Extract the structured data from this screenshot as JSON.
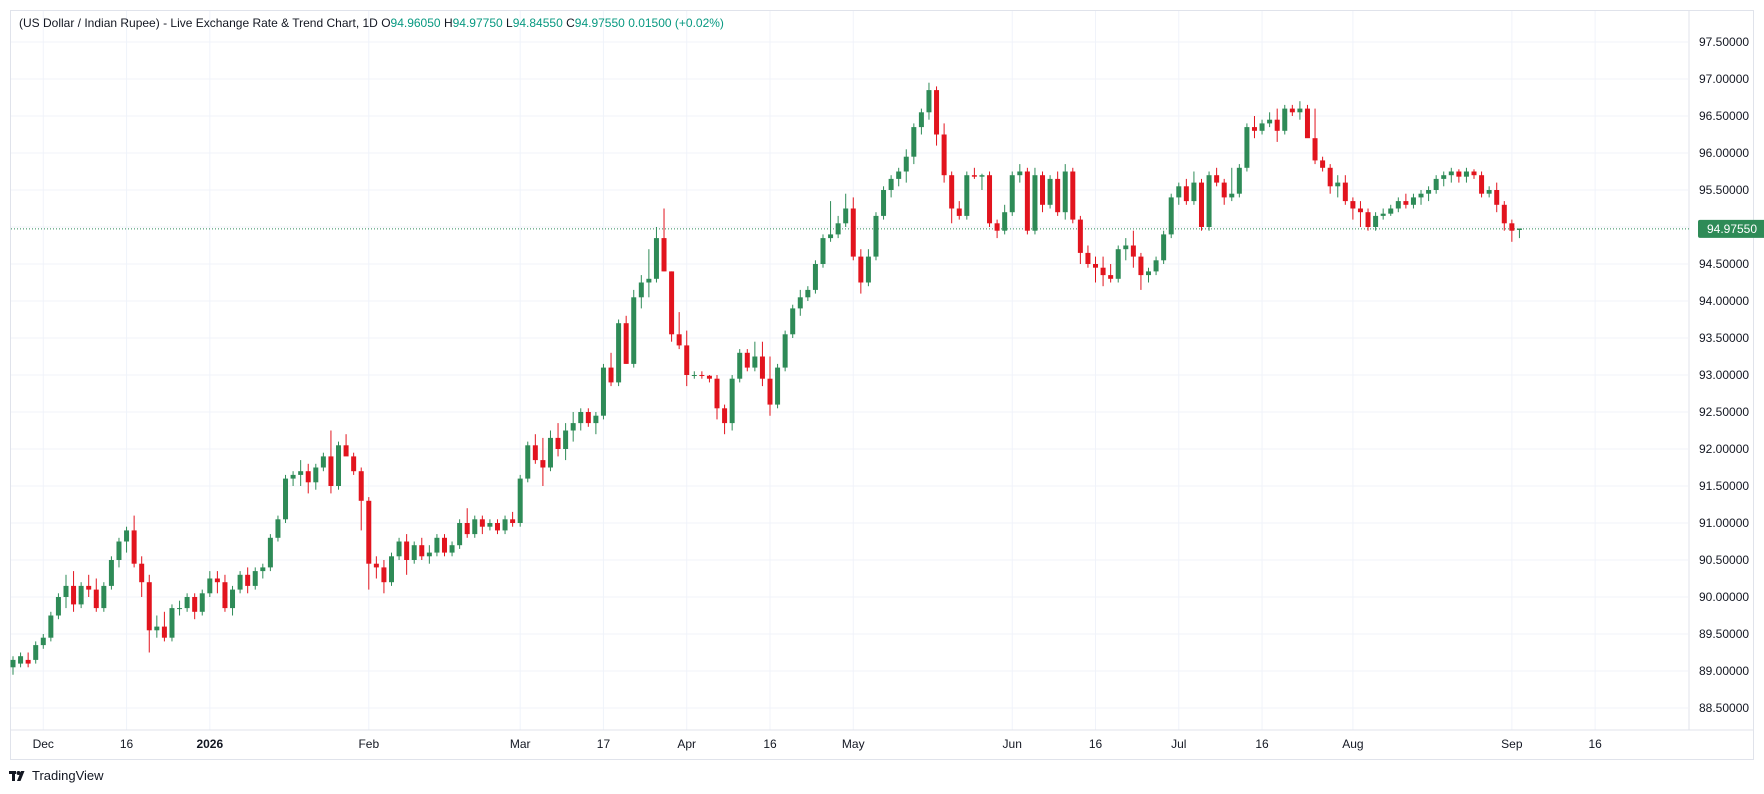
{
  "legend": {
    "symbol": "(US Dollar / Indian Rupee) - Live Exchange Rate & Trend Chart, 1D",
    "o_label": "O",
    "o_value": "94.96050",
    "h_label": "H",
    "h_value": "94.97750",
    "l_label": "L",
    "l_value": "94.84550",
    "c_label": "C",
    "c_value": "94.97550",
    "change": "0.01500 (+0.02%)"
  },
  "footer": {
    "brand": "TradingView"
  },
  "colors": {
    "up": "#2e8b57",
    "down": "#e2141e",
    "last_price_bg": "#2e8b57",
    "grid": "#f0f3fa"
  },
  "chart_data": {
    "type": "candlestick",
    "title": "(US Dollar / Indian Rupee) - Live Exchange Rate & Trend Chart, 1D",
    "xlabel": "",
    "ylabel": "",
    "ylim": [
      88.2,
      97.8
    ],
    "grid": true,
    "y_ticks": [
      "88.50000",
      "89.00000",
      "89.50000",
      "90.00000",
      "90.50000",
      "91.00000",
      "91.50000",
      "92.00000",
      "92.50000",
      "93.00000",
      "93.50000",
      "94.00000",
      "94.50000",
      "95.00000",
      "95.50000",
      "96.00000",
      "96.50000",
      "97.00000",
      "97.50000"
    ],
    "x_ticks": [
      {
        "label": "Dec",
        "index": 4
      },
      {
        "label": "16",
        "index": 15
      },
      {
        "label": "2026",
        "index": 26
      },
      {
        "label": "Feb",
        "index": 47
      },
      {
        "label": "Mar",
        "index": 67
      },
      {
        "label": "17",
        "index": 78
      },
      {
        "label": "Apr",
        "index": 89
      },
      {
        "label": "16",
        "index": 100
      },
      {
        "label": "May",
        "index": 111
      },
      {
        "label": "Jun",
        "index": 132
      },
      {
        "label": "16",
        "index": 143
      },
      {
        "label": "Jul",
        "index": 154
      },
      {
        "label": "16",
        "index": 165
      },
      {
        "label": "Aug",
        "index": 177
      },
      {
        "label": "Sep",
        "index": 198
      },
      {
        "label": "16",
        "index": 209
      }
    ],
    "last_price": "94.97550",
    "last_price_value": 94.9755,
    "candles": [
      [
        89.05,
        89.2,
        88.95,
        89.15
      ],
      [
        89.1,
        89.25,
        89.05,
        89.2
      ],
      [
        89.15,
        89.25,
        89.05,
        89.1
      ],
      [
        89.15,
        89.4,
        89.1,
        89.35
      ],
      [
        89.35,
        89.5,
        89.3,
        89.45
      ],
      [
        89.45,
        89.8,
        89.4,
        89.75
      ],
      [
        89.75,
        90.05,
        89.7,
        90.0
      ],
      [
        90.0,
        90.3,
        89.85,
        90.15
      ],
      [
        90.15,
        90.35,
        89.8,
        89.9
      ],
      [
        89.9,
        90.2,
        89.85,
        90.15
      ],
      [
        90.15,
        90.3,
        90.0,
        90.1
      ],
      [
        90.1,
        90.25,
        89.8,
        89.85
      ],
      [
        89.85,
        90.2,
        89.8,
        90.15
      ],
      [
        90.15,
        90.55,
        90.1,
        90.5
      ],
      [
        90.5,
        90.8,
        90.4,
        90.75
      ],
      [
        90.75,
        90.95,
        90.6,
        90.9
      ],
      [
        90.9,
        91.1,
        90.4,
        90.45
      ],
      [
        90.45,
        90.55,
        90.0,
        90.2
      ],
      [
        90.2,
        90.3,
        89.25,
        89.55
      ],
      [
        89.55,
        89.75,
        89.45,
        89.6
      ],
      [
        89.6,
        89.8,
        89.4,
        89.45
      ],
      [
        89.45,
        89.9,
        89.4,
        89.85
      ],
      [
        89.85,
        89.95,
        89.75,
        89.85
      ],
      [
        89.85,
        90.05,
        89.8,
        90.0
      ],
      [
        90.0,
        90.05,
        89.7,
        89.8
      ],
      [
        89.8,
        90.1,
        89.75,
        90.05
      ],
      [
        90.05,
        90.35,
        90.0,
        90.25
      ],
      [
        90.25,
        90.35,
        90.05,
        90.2
      ],
      [
        90.2,
        90.3,
        89.8,
        89.85
      ],
      [
        89.85,
        90.15,
        89.75,
        90.1
      ],
      [
        90.1,
        90.35,
        90.05,
        90.3
      ],
      [
        90.3,
        90.4,
        90.05,
        90.15
      ],
      [
        90.15,
        90.4,
        90.1,
        90.35
      ],
      [
        90.35,
        90.45,
        90.25,
        90.4
      ],
      [
        90.4,
        90.85,
        90.35,
        90.8
      ],
      [
        90.8,
        91.1,
        90.75,
        91.05
      ],
      [
        91.05,
        91.65,
        91.0,
        91.6
      ],
      [
        91.6,
        91.7,
        91.5,
        91.65
      ],
      [
        91.65,
        91.85,
        91.5,
        91.7
      ],
      [
        91.7,
        91.8,
        91.4,
        91.55
      ],
      [
        91.55,
        91.8,
        91.45,
        91.75
      ],
      [
        91.75,
        91.95,
        91.7,
        91.9
      ],
      [
        91.9,
        92.25,
        91.4,
        91.5
      ],
      [
        91.5,
        92.1,
        91.45,
        92.05
      ],
      [
        92.05,
        92.2,
        91.95,
        91.9
      ],
      [
        91.9,
        91.95,
        91.65,
        91.7
      ],
      [
        91.7,
        91.75,
        90.9,
        91.3
      ],
      [
        91.3,
        91.35,
        90.1,
        90.45
      ],
      [
        90.45,
        90.55,
        90.25,
        90.4
      ],
      [
        90.4,
        90.5,
        90.05,
        90.2
      ],
      [
        90.2,
        90.6,
        90.15,
        90.55
      ],
      [
        90.55,
        90.8,
        90.5,
        90.75
      ],
      [
        90.75,
        90.85,
        90.3,
        90.5
      ],
      [
        90.5,
        90.75,
        90.45,
        90.7
      ],
      [
        90.7,
        90.8,
        90.5,
        90.55
      ],
      [
        90.55,
        90.7,
        90.45,
        90.6
      ],
      [
        90.6,
        90.85,
        90.55,
        90.8
      ],
      [
        90.8,
        90.85,
        90.55,
        90.6
      ],
      [
        90.6,
        90.75,
        90.55,
        90.7
      ],
      [
        90.7,
        91.05,
        90.65,
        91.0
      ],
      [
        91.0,
        91.2,
        90.8,
        90.85
      ],
      [
        90.85,
        91.1,
        90.8,
        91.05
      ],
      [
        91.05,
        91.1,
        90.85,
        90.95
      ],
      [
        90.95,
        91.05,
        90.9,
        91.0
      ],
      [
        91.0,
        91.05,
        90.85,
        90.9
      ],
      [
        90.9,
        91.1,
        90.85,
        91.05
      ],
      [
        91.05,
        91.15,
        90.95,
        91.0
      ],
      [
        91.0,
        91.65,
        90.95,
        91.6
      ],
      [
        91.6,
        92.1,
        91.55,
        92.05
      ],
      [
        92.05,
        92.2,
        91.8,
        91.85
      ],
      [
        91.85,
        92.15,
        91.5,
        91.75
      ],
      [
        91.75,
        92.25,
        91.7,
        92.15
      ],
      [
        92.15,
        92.35,
        91.9,
        92.0
      ],
      [
        92.0,
        92.35,
        91.85,
        92.25
      ],
      [
        92.25,
        92.5,
        92.1,
        92.35
      ],
      [
        92.35,
        92.55,
        92.25,
        92.5
      ],
      [
        92.5,
        92.55,
        92.3,
        92.35
      ],
      [
        92.35,
        92.5,
        92.2,
        92.45
      ],
      [
        92.45,
        93.15,
        92.4,
        93.1
      ],
      [
        93.1,
        93.3,
        92.85,
        92.9
      ],
      [
        92.9,
        93.75,
        92.85,
        93.7
      ],
      [
        93.7,
        93.8,
        93.15,
        93.15
      ],
      [
        93.15,
        94.15,
        93.1,
        94.05
      ],
      [
        94.05,
        94.35,
        93.9,
        94.25
      ],
      [
        94.25,
        94.7,
        94.05,
        94.3
      ],
      [
        94.3,
        95.0,
        94.25,
        94.85
      ],
      [
        94.85,
        95.25,
        94.4,
        94.4
      ],
      [
        94.4,
        94.4,
        93.45,
        93.55
      ],
      [
        93.55,
        93.85,
        93.35,
        93.4
      ],
      [
        93.4,
        93.6,
        92.85,
        93.0
      ],
      [
        93.0,
        93.05,
        92.95,
        93.0
      ],
      [
        93.0,
        93.05,
        92.95,
        92.99
      ],
      [
        92.99,
        93.0,
        92.9,
        92.95
      ],
      [
        92.95,
        93.0,
        92.4,
        92.55
      ],
      [
        92.55,
        92.6,
        92.2,
        92.35
      ],
      [
        92.35,
        93.0,
        92.25,
        92.95
      ],
      [
        92.95,
        93.35,
        92.9,
        93.3
      ],
      [
        93.3,
        93.35,
        93.05,
        93.1
      ],
      [
        93.1,
        93.45,
        93.05,
        93.25
      ],
      [
        93.25,
        93.45,
        92.85,
        92.95
      ],
      [
        92.95,
        93.25,
        92.45,
        92.6
      ],
      [
        92.6,
        93.15,
        92.55,
        93.1
      ],
      [
        93.1,
        93.6,
        93.05,
        93.55
      ],
      [
        93.55,
        93.95,
        93.5,
        93.9
      ],
      [
        93.9,
        94.15,
        93.8,
        94.05
      ],
      [
        94.05,
        94.2,
        94.0,
        94.15
      ],
      [
        94.15,
        94.55,
        94.1,
        94.5
      ],
      [
        94.5,
        94.9,
        94.45,
        94.85
      ],
      [
        94.85,
        95.35,
        94.8,
        94.9
      ],
      [
        94.9,
        95.15,
        94.85,
        95.05
      ],
      [
        95.05,
        95.45,
        95.0,
        95.25
      ],
      [
        95.25,
        95.4,
        94.55,
        94.6
      ],
      [
        94.6,
        94.7,
        94.1,
        94.25
      ],
      [
        94.25,
        94.7,
        94.2,
        94.6
      ],
      [
        94.6,
        95.2,
        94.55,
        95.15
      ],
      [
        95.15,
        95.55,
        95.1,
        95.5
      ],
      [
        95.5,
        95.7,
        95.4,
        95.65
      ],
      [
        95.65,
        95.8,
        95.55,
        95.75
      ],
      [
        95.75,
        96.05,
        95.6,
        95.95
      ],
      [
        95.95,
        96.4,
        95.85,
        96.35
      ],
      [
        96.35,
        96.6,
        96.25,
        96.55
      ],
      [
        96.55,
        96.95,
        96.45,
        96.85
      ],
      [
        96.85,
        96.9,
        96.1,
        96.25
      ],
      [
        96.25,
        96.4,
        95.6,
        95.7
      ],
      [
        95.7,
        95.75,
        95.05,
        95.25
      ],
      [
        95.25,
        95.35,
        95.1,
        95.15
      ],
      [
        95.15,
        95.75,
        95.1,
        95.7
      ],
      [
        95.7,
        95.8,
        95.65,
        95.68
      ],
      [
        95.68,
        95.72,
        95.5,
        95.7
      ],
      [
        95.7,
        95.75,
        95.0,
        95.05
      ],
      [
        95.05,
        95.1,
        94.85,
        94.95
      ],
      [
        94.95,
        95.3,
        94.9,
        95.2
      ],
      [
        95.2,
        95.75,
        95.15,
        95.7
      ],
      [
        95.7,
        95.85,
        95.6,
        95.75
      ],
      [
        95.75,
        95.8,
        94.9,
        94.95
      ],
      [
        94.95,
        95.8,
        94.9,
        95.7
      ],
      [
        95.7,
        95.75,
        95.2,
        95.3
      ],
      [
        95.3,
        95.7,
        95.25,
        95.65
      ],
      [
        95.65,
        95.75,
        95.15,
        95.2
      ],
      [
        95.2,
        95.85,
        95.1,
        95.75
      ],
      [
        95.75,
        95.8,
        95.05,
        95.1
      ],
      [
        95.1,
        95.15,
        94.5,
        94.65
      ],
      [
        94.65,
        94.75,
        94.45,
        94.5
      ],
      [
        94.5,
        94.6,
        94.25,
        94.45
      ],
      [
        94.45,
        94.6,
        94.2,
        94.35
      ],
      [
        94.35,
        94.5,
        94.25,
        94.3
      ],
      [
        94.3,
        94.75,
        94.25,
        94.7
      ],
      [
        94.7,
        94.85,
        94.55,
        94.75
      ],
      [
        94.75,
        94.95,
        94.45,
        94.6
      ],
      [
        94.6,
        94.65,
        94.15,
        94.35
      ],
      [
        94.35,
        94.45,
        94.25,
        94.4
      ],
      [
        94.4,
        94.6,
        94.35,
        94.55
      ],
      [
        94.55,
        94.95,
        94.5,
        94.9
      ],
      [
        94.9,
        95.45,
        94.85,
        95.4
      ],
      [
        95.4,
        95.6,
        95.3,
        95.55
      ],
      [
        95.55,
        95.65,
        95.3,
        95.35
      ],
      [
        95.35,
        95.75,
        95.3,
        95.6
      ],
      [
        95.6,
        95.65,
        94.95,
        95.0
      ],
      [
        95.0,
        95.75,
        94.95,
        95.7
      ],
      [
        95.7,
        95.8,
        95.55,
        95.6
      ],
      [
        95.6,
        95.65,
        95.3,
        95.4
      ],
      [
        95.4,
        95.8,
        95.35,
        95.45
      ],
      [
        95.45,
        95.85,
        95.4,
        95.8
      ],
      [
        95.8,
        96.4,
        95.75,
        96.35
      ],
      [
        96.35,
        96.5,
        96.2,
        96.3
      ],
      [
        96.3,
        96.45,
        96.25,
        96.4
      ],
      [
        96.4,
        96.55,
        96.35,
        96.45
      ],
      [
        96.45,
        96.6,
        96.15,
        96.3
      ],
      [
        96.3,
        96.65,
        96.25,
        96.6
      ],
      [
        96.6,
        96.65,
        96.5,
        96.55
      ],
      [
        96.55,
        96.7,
        96.45,
        96.6
      ],
      [
        96.6,
        96.65,
        96.25,
        96.2
      ],
      [
        96.2,
        96.6,
        95.85,
        95.9
      ],
      [
        95.9,
        95.95,
        95.75,
        95.8
      ],
      [
        95.8,
        95.85,
        95.45,
        95.55
      ],
      [
        95.55,
        95.7,
        95.4,
        95.6
      ],
      [
        95.6,
        95.7,
        95.3,
        95.35
      ],
      [
        95.35,
        95.4,
        95.1,
        95.25
      ],
      [
        95.25,
        95.35,
        95.0,
        95.2
      ],
      [
        95.2,
        95.25,
        94.95,
        95.0
      ],
      [
        95.0,
        95.2,
        94.95,
        95.15
      ],
      [
        95.15,
        95.25,
        95.1,
        95.18
      ],
      [
        95.18,
        95.3,
        95.15,
        95.25
      ],
      [
        95.25,
        95.4,
        95.2,
        95.35
      ],
      [
        95.35,
        95.45,
        95.25,
        95.3
      ],
      [
        95.3,
        95.45,
        95.25,
        95.4
      ],
      [
        95.4,
        95.5,
        95.3,
        95.45
      ],
      [
        95.45,
        95.55,
        95.35,
        95.5
      ],
      [
        95.5,
        95.7,
        95.45,
        95.65
      ],
      [
        95.65,
        95.75,
        95.55,
        95.7
      ],
      [
        95.7,
        95.8,
        95.6,
        95.75
      ],
      [
        95.75,
        95.78,
        95.6,
        95.68
      ],
      [
        95.68,
        95.8,
        95.6,
        95.75
      ],
      [
        95.75,
        95.78,
        95.65,
        95.7
      ],
      [
        95.7,
        95.75,
        95.4,
        95.45
      ],
      [
        95.45,
        95.55,
        95.4,
        95.5
      ],
      [
        95.5,
        95.6,
        95.2,
        95.3
      ],
      [
        95.3,
        95.35,
        94.95,
        95.05
      ],
      [
        95.05,
        95.1,
        94.8,
        94.95
      ],
      [
        94.96,
        94.98,
        94.85,
        94.98
      ]
    ]
  }
}
